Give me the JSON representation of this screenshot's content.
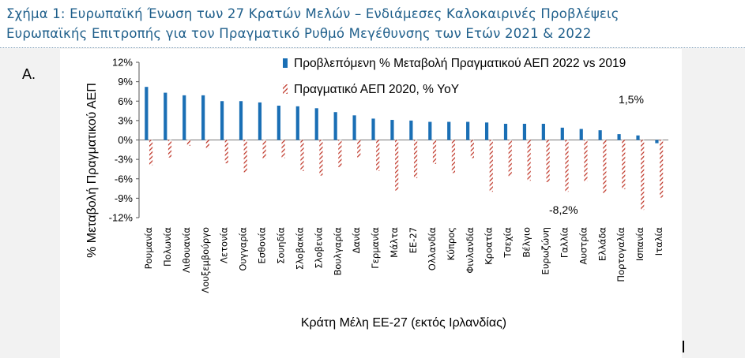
{
  "heading": {
    "line1": "Σχήμα 1: Ευρωπαϊκή Ένωση των 27 Κρατών Μελών – Ενδιάμεσες Καλοκαιρινές Προβλέψεις",
    "line2": "Ευρωπαϊκής Επιτροπής για τον Πραγματικό Ρυθμό Μεγέθυνσης των Ετών 2021 & 2022"
  },
  "panel_label": "A.",
  "colors": {
    "forecast": "#1a6fb5",
    "actual": "#c0392b",
    "heading": "#1f5f8b"
  },
  "chart_data": {
    "type": "bar",
    "categories": [
      "Ρουμανία",
      "Πολωνία",
      "Λιθουανία",
      "Λουξεμβούργο",
      "Λετονία",
      "Ουγγαρία",
      "Εσθονία",
      "Σουηδία",
      "Σλοβακία",
      "Σλοβενία",
      "Βουλγαρία",
      "Δανία",
      "Γερμανία",
      "Μάλτα",
      "ΕΕ-27",
      "Ολλανδία",
      "Κύπρος",
      "Φινλανδία",
      "Κροατία",
      "Τσεχία",
      "Βέλγιο",
      "Ευρωζώνη",
      "Γαλλία",
      "Αυστρία",
      "Ελλάδα",
      "Πορτογαλία",
      "Ισπανία",
      "Ιταλία"
    ],
    "series": [
      {
        "name": "Προβλεπόμενη % Μεταβολή Πραγματικού ΑΕΠ 2022 vs 2019",
        "style": "solid",
        "values": [
          8.2,
          7.3,
          6.9,
          6.9,
          6.0,
          6.0,
          5.8,
          5.3,
          5.2,
          4.9,
          4.3,
          3.8,
          3.3,
          3.1,
          3.0,
          2.8,
          2.8,
          2.8,
          2.7,
          2.5,
          2.5,
          2.5,
          1.9,
          1.7,
          1.5,
          0.9,
          0.7,
          -0.5
        ]
      },
      {
        "name": "Πραγματικό ΑΕΠ 2020, % YoY",
        "style": "hatched",
        "values": [
          -3.9,
          -2.7,
          -0.9,
          -1.3,
          -3.6,
          -5.0,
          -2.9,
          -2.8,
          -4.8,
          -5.5,
          -4.2,
          -2.7,
          -4.8,
          -7.8,
          -5.9,
          -3.7,
          -5.1,
          -2.8,
          -8.0,
          -5.6,
          -6.3,
          -6.5,
          -8.0,
          -6.4,
          -8.2,
          -7.6,
          -10.8,
          -8.9
        ]
      }
    ],
    "ylim": [
      -12,
      12
    ],
    "y_ticks": [
      "12%",
      "9%",
      "6%",
      "3%",
      "0%",
      "-3%",
      "-6%",
      "-9%",
      "-12%"
    ],
    "ylabel": "% Μεταβολή Πραγματικού ΑΕΠ",
    "xlabel": "Κράτη Μέλη ΕΕ-27 (εκτός Ιρλανδίας)",
    "annotations": [
      "1,5%",
      "-8,2%"
    ],
    "legend_position": "top"
  }
}
